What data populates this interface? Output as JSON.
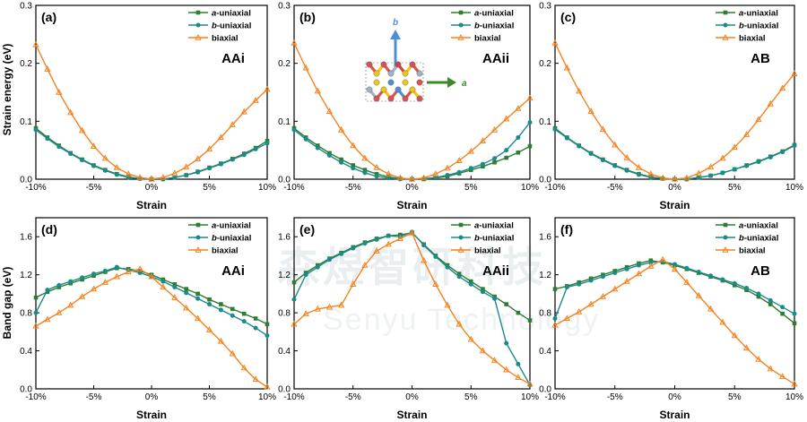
{
  "watermark": {
    "cn": "森煜智研科技",
    "en": "Senyu Technology"
  },
  "inset": {
    "a_label": "a",
    "b_label": "b"
  },
  "colors": {
    "a_uniaxial": "#2e7d32",
    "b_uniaxial": "#1b8a8a",
    "biaxial": "#f5821f"
  },
  "chart_data": [
    {
      "type": "line",
      "panel": "(a)",
      "tag": "AAi",
      "xlabel": "Strain",
      "ylabel": "Strain energy (eV)",
      "xlim": [
        -10,
        10
      ],
      "ylim": [
        0,
        0.3
      ],
      "xticks": [
        "-10%",
        "-5%",
        "0%",
        "5%",
        "10%"
      ],
      "yticks": [
        "0.0",
        "0.1",
        "0.2",
        "0.3"
      ],
      "x": [
        -10,
        -9,
        -8,
        -7,
        -6,
        -5,
        -4,
        -3,
        -2,
        -1,
        0,
        1,
        2,
        3,
        4,
        5,
        6,
        7,
        8,
        9,
        10
      ],
      "series": [
        {
          "name": "a-uniaxial",
          "italic": "a",
          "rest": "-uniaxial",
          "color": "#2e7d32",
          "marker": "square",
          "values": [
            0.088,
            0.072,
            0.058,
            0.045,
            0.034,
            0.024,
            0.016,
            0.009,
            0.004,
            0.001,
            0.0,
            0.0,
            0.003,
            0.007,
            0.013,
            0.02,
            0.027,
            0.035,
            0.044,
            0.054,
            0.066
          ]
        },
        {
          "name": "b-uniaxial",
          "italic": "b",
          "rest": "-uniaxial",
          "color": "#1b8a8a",
          "marker": "circle",
          "values": [
            0.085,
            0.07,
            0.056,
            0.044,
            0.033,
            0.023,
            0.015,
            0.008,
            0.003,
            0.001,
            0.0,
            0.0,
            0.003,
            0.007,
            0.012,
            0.019,
            0.026,
            0.034,
            0.042,
            0.052,
            0.062
          ]
        },
        {
          "name": "biaxial",
          "italic": "",
          "rest": "biaxial",
          "color": "#f5821f",
          "marker": "triangle",
          "values": [
            0.232,
            0.19,
            0.15,
            0.115,
            0.084,
            0.057,
            0.036,
            0.02,
            0.009,
            0.003,
            0.0,
            0.003,
            0.01,
            0.021,
            0.035,
            0.052,
            0.072,
            0.094,
            0.116,
            0.136,
            0.155
          ]
        }
      ]
    },
    {
      "type": "line",
      "panel": "(b)",
      "tag": "AAii",
      "xlabel": "Strain",
      "ylabel": "",
      "xlim": [
        -10,
        10
      ],
      "ylim": [
        0,
        0.3
      ],
      "xticks": [
        "-10%",
        "-5%",
        "0%",
        "5%",
        "10%"
      ],
      "yticks": [
        "0.0",
        "0.1",
        "0.2",
        "0.3"
      ],
      "x": [
        -10,
        -9,
        -8,
        -7,
        -6,
        -5,
        -4,
        -3,
        -2,
        -1,
        0,
        1,
        2,
        3,
        4,
        5,
        6,
        7,
        8,
        9,
        10
      ],
      "series": [
        {
          "name": "a-uniaxial",
          "italic": "a",
          "rest": "-uniaxial",
          "color": "#2e7d32",
          "marker": "square",
          "values": [
            0.088,
            0.072,
            0.058,
            0.045,
            0.034,
            0.024,
            0.016,
            0.009,
            0.004,
            0.001,
            0.0,
            0.0,
            0.002,
            0.005,
            0.01,
            0.016,
            0.022,
            0.029,
            0.037,
            0.046,
            0.057
          ]
        },
        {
          "name": "b-uniaxial",
          "italic": "b",
          "rest": "-uniaxial",
          "color": "#1b8a8a",
          "marker": "circle",
          "values": [
            0.085,
            0.069,
            0.054,
            0.041,
            0.029,
            0.019,
            0.011,
            0.005,
            0.002,
            0.0,
            0.0,
            0.001,
            0.003,
            0.007,
            0.012,
            0.019,
            0.026,
            0.036,
            0.05,
            0.072,
            0.098
          ]
        },
        {
          "name": "biaxial",
          "italic": "",
          "rest": "biaxial",
          "color": "#f5821f",
          "marker": "triangle",
          "values": [
            0.235,
            0.192,
            0.152,
            0.117,
            0.085,
            0.058,
            0.036,
            0.02,
            0.009,
            0.002,
            0.0,
            0.002,
            0.009,
            0.019,
            0.032,
            0.048,
            0.066,
            0.085,
            0.104,
            0.122,
            0.14
          ]
        }
      ]
    },
    {
      "type": "line",
      "panel": "(c)",
      "tag": "AB",
      "xlabel": "Strain",
      "ylabel": "",
      "xlim": [
        -10,
        10
      ],
      "ylim": [
        0,
        0.3
      ],
      "xticks": [
        "-10%",
        "-5%",
        "0%",
        "5%",
        "10%"
      ],
      "yticks": [
        "0.0",
        "0.1",
        "0.2",
        "0.3"
      ],
      "x": [
        -10,
        -9,
        -8,
        -7,
        -6,
        -5,
        -4,
        -3,
        -2,
        -1,
        0,
        1,
        2,
        3,
        4,
        5,
        6,
        7,
        8,
        9,
        10
      ],
      "series": [
        {
          "name": "a-uniaxial",
          "italic": "a",
          "rest": "-uniaxial",
          "color": "#2e7d32",
          "marker": "square",
          "values": [
            0.088,
            0.072,
            0.058,
            0.045,
            0.034,
            0.024,
            0.016,
            0.009,
            0.004,
            0.001,
            0.0,
            0.0,
            0.003,
            0.006,
            0.011,
            0.017,
            0.024,
            0.031,
            0.039,
            0.048,
            0.059
          ]
        },
        {
          "name": "b-uniaxial",
          "italic": "b",
          "rest": "-uniaxial",
          "color": "#1b8a8a",
          "marker": "circle",
          "values": [
            0.086,
            0.071,
            0.057,
            0.044,
            0.033,
            0.023,
            0.015,
            0.008,
            0.003,
            0.001,
            0.0,
            0.0,
            0.003,
            0.006,
            0.011,
            0.017,
            0.023,
            0.03,
            0.038,
            0.047,
            0.058
          ]
        },
        {
          "name": "biaxial",
          "italic": "",
          "rest": "biaxial",
          "color": "#f5821f",
          "marker": "triangle",
          "values": [
            0.235,
            0.192,
            0.152,
            0.117,
            0.086,
            0.059,
            0.037,
            0.02,
            0.009,
            0.002,
            0.0,
            0.002,
            0.01,
            0.021,
            0.036,
            0.055,
            0.077,
            0.103,
            0.13,
            0.157,
            0.182
          ]
        }
      ]
    },
    {
      "type": "line",
      "panel": "(d)",
      "tag": "AAi",
      "xlabel": "Strain",
      "ylabel": "Band gap (eV)",
      "xlim": [
        -10,
        10
      ],
      "ylim": [
        0,
        1.8
      ],
      "xticks": [
        "-10%",
        "-5%",
        "0%",
        "5%",
        "10%"
      ],
      "yticks": [
        "0.0",
        "0.4",
        "0.8",
        "1.2",
        "1.6"
      ],
      "x": [
        -10,
        -9,
        -8,
        -7,
        -6,
        -5,
        -4,
        -3,
        -2,
        -1,
        0,
        1,
        2,
        3,
        4,
        5,
        6,
        7,
        8,
        9,
        10
      ],
      "series": [
        {
          "name": "a-uniaxial",
          "italic": "a",
          "rest": "-uniaxial",
          "color": "#2e7d32",
          "marker": "square",
          "values": [
            0.96,
            1.02,
            1.07,
            1.11,
            1.15,
            1.19,
            1.23,
            1.27,
            1.26,
            1.24,
            1.2,
            1.15,
            1.1,
            1.05,
            1.0,
            0.94,
            0.89,
            0.84,
            0.79,
            0.74,
            0.68
          ]
        },
        {
          "name": "b-uniaxial",
          "italic": "b",
          "rest": "-uniaxial",
          "color": "#1b8a8a",
          "marker": "circle",
          "values": [
            0.8,
            1.04,
            1.09,
            1.13,
            1.17,
            1.21,
            1.24,
            1.28,
            1.25,
            1.22,
            1.18,
            1.13,
            1.07,
            1.01,
            0.95,
            0.89,
            0.83,
            0.77,
            0.71,
            0.64,
            0.56
          ]
        },
        {
          "name": "biaxial",
          "italic": "",
          "rest": "biaxial",
          "color": "#f5821f",
          "marker": "triangle",
          "values": [
            0.66,
            0.73,
            0.8,
            0.88,
            0.97,
            1.05,
            1.12,
            1.18,
            1.23,
            1.26,
            1.18,
            1.07,
            0.96,
            0.85,
            0.74,
            0.62,
            0.5,
            0.37,
            0.22,
            0.1,
            0.02
          ]
        }
      ]
    },
    {
      "type": "line",
      "panel": "(e)",
      "tag": "AAii",
      "xlabel": "Strain",
      "ylabel": "",
      "xlim": [
        -10,
        10
      ],
      "ylim": [
        0,
        1.8
      ],
      "xticks": [
        "-10%",
        "-5%",
        "0%",
        "5%",
        "10%"
      ],
      "yticks": [
        "0.0",
        "0.4",
        "0.8",
        "1.2",
        "1.6"
      ],
      "x": [
        -10,
        -9,
        -8,
        -7,
        -6,
        -5,
        -4,
        -3,
        -2,
        -1,
        0,
        1,
        2,
        3,
        4,
        5,
        6,
        7,
        8,
        9,
        10
      ],
      "series": [
        {
          "name": "a-uniaxial",
          "italic": "a",
          "rest": "-uniaxial",
          "color": "#2e7d32",
          "marker": "square",
          "values": [
            1.12,
            1.22,
            1.3,
            1.37,
            1.43,
            1.49,
            1.54,
            1.58,
            1.61,
            1.62,
            1.64,
            1.52,
            1.4,
            1.3,
            1.21,
            1.13,
            1.05,
            0.97,
            0.89,
            0.8,
            0.72
          ]
        },
        {
          "name": "b-uniaxial",
          "italic": "b",
          "rest": "-uniaxial",
          "color": "#1b8a8a",
          "marker": "circle",
          "values": [
            0.94,
            1.2,
            1.28,
            1.36,
            1.42,
            1.48,
            1.53,
            1.57,
            1.61,
            1.6,
            1.65,
            1.51,
            1.39,
            1.28,
            1.18,
            1.1,
            1.02,
            0.95,
            0.48,
            0.26,
            0.04
          ]
        },
        {
          "name": "biaxial",
          "italic": "",
          "rest": "biaxial",
          "color": "#f5821f",
          "marker": "triangle",
          "values": [
            0.68,
            0.79,
            0.84,
            0.86,
            0.88,
            1.1,
            1.3,
            1.45,
            1.52,
            1.58,
            1.64,
            1.35,
            1.1,
            0.88,
            0.68,
            0.52,
            0.4,
            0.3,
            0.2,
            0.12,
            0.05
          ]
        }
      ]
    },
    {
      "type": "line",
      "panel": "(f)",
      "tag": "AB",
      "xlabel": "Strain",
      "ylabel": "",
      "xlim": [
        -10,
        10
      ],
      "ylim": [
        0,
        1.8
      ],
      "xticks": [
        "-10%",
        "-5%",
        "0%",
        "5%",
        "10%"
      ],
      "yticks": [
        "0.0",
        "0.4",
        "0.8",
        "1.2",
        "1.6"
      ],
      "x": [
        -10,
        -9,
        -8,
        -7,
        -6,
        -5,
        -4,
        -3,
        -2,
        -1,
        0,
        1,
        2,
        3,
        4,
        5,
        6,
        7,
        8,
        9,
        10
      ],
      "series": [
        {
          "name": "a-uniaxial",
          "italic": "a",
          "rest": "-uniaxial",
          "color": "#2e7d32",
          "marker": "square",
          "values": [
            1.05,
            1.08,
            1.12,
            1.16,
            1.2,
            1.24,
            1.28,
            1.32,
            1.35,
            1.33,
            1.3,
            1.26,
            1.22,
            1.18,
            1.14,
            1.09,
            1.04,
            0.97,
            0.89,
            0.79,
            0.69
          ]
        },
        {
          "name": "b-uniaxial",
          "italic": "b",
          "rest": "-uniaxial",
          "color": "#1b8a8a",
          "marker": "circle",
          "values": [
            0.74,
            1.07,
            1.1,
            1.14,
            1.18,
            1.22,
            1.26,
            1.3,
            1.33,
            1.34,
            1.31,
            1.27,
            1.23,
            1.19,
            1.15,
            1.11,
            1.06,
            1.0,
            0.93,
            0.86,
            0.79
          ]
        },
        {
          "name": "biaxial",
          "italic": "",
          "rest": "biaxial",
          "color": "#f5821f",
          "marker": "triangle",
          "values": [
            0.67,
            0.74,
            0.81,
            0.89,
            0.97,
            1.05,
            1.13,
            1.21,
            1.29,
            1.36,
            1.26,
            1.12,
            0.98,
            0.84,
            0.7,
            0.56,
            0.43,
            0.31,
            0.21,
            0.13,
            0.05
          ]
        }
      ]
    }
  ]
}
